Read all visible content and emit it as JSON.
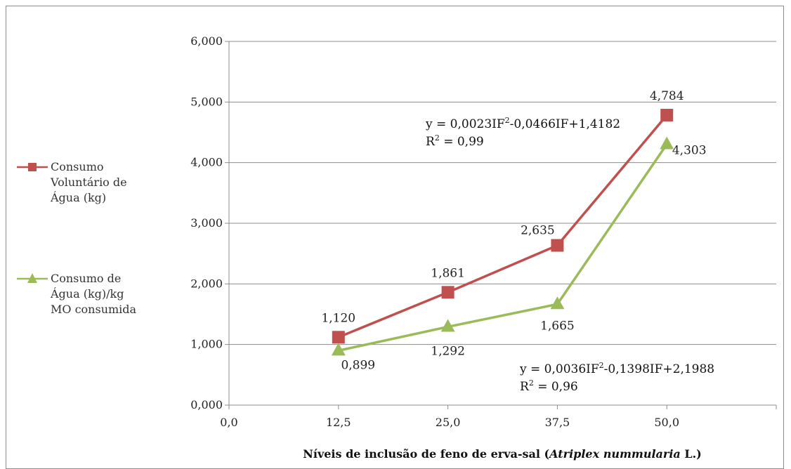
{
  "chart_data": {
    "type": "line",
    "x_ticks": [
      "0,0",
      "12,5",
      "25,0",
      "37,5",
      "50,0"
    ],
    "y_ticks": [
      "0,000",
      "1,000",
      "2,000",
      "3,000",
      "4,000",
      "5,000",
      "6,000"
    ],
    "xlim": [
      0,
      62.5
    ],
    "ylim": [
      0,
      6
    ],
    "grid": "horizontal",
    "legend_position": "left",
    "x_title_parts": {
      "prefix": "Níveis de inclusão de feno de erva-sal (",
      "italic": "Atriplex nummularia",
      "suffix": " L.)"
    },
    "series": [
      {
        "name_lines": [
          "Consumo",
          "Voluntário de",
          "Água (kg)"
        ],
        "color": "#c0504d",
        "marker": "square",
        "x": [
          12.5,
          25,
          37.5,
          50
        ],
        "values": [
          1.12,
          1.861,
          2.635,
          4.784
        ],
        "labels": [
          "1,120",
          "1,861",
          "2,635",
          "4,784"
        ],
        "equation": {
          "lhs": "y = 0,0023IF",
          "sup": "2",
          "rhs": "-0,0466IF+1,4182",
          "r2_lhs": "R",
          "r2_sup": "2",
          "r2_rhs": " = 0,99"
        }
      },
      {
        "name_lines": [
          "Consumo de",
          "Água (kg)/kg",
          "MO consumida"
        ],
        "color": "#9bbb59",
        "marker": "triangle",
        "x": [
          12.5,
          25,
          37.5,
          50
        ],
        "values": [
          0.899,
          1.292,
          1.665,
          4.303
        ],
        "labels": [
          "0,899",
          "1,292",
          "1,665",
          "4,303"
        ],
        "equation": {
          "lhs": "y = 0,0036IF",
          "sup": "2",
          "rhs": "-0,1398IF+2,1988",
          "r2_lhs": "R",
          "r2_sup": "2",
          "r2_rhs": " = 0,96"
        }
      }
    ]
  }
}
